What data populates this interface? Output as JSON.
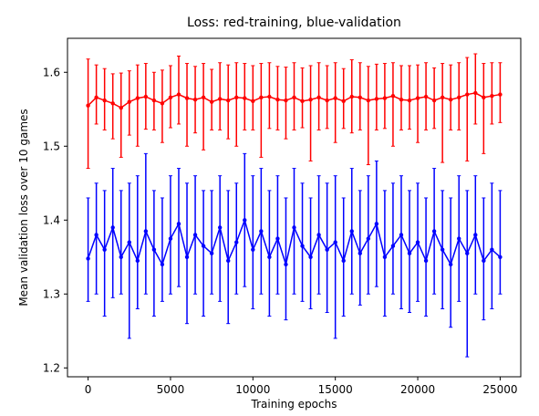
{
  "chart_data": {
    "type": "line",
    "title": "Loss: red-training, blue-validation",
    "xlabel": "Training epochs",
    "ylabel": "Mean validation loss over 10 games",
    "xlim": [
      -1250,
      26250
    ],
    "ylim": [
      1.188,
      1.646
    ],
    "xticks": [
      0,
      5000,
      10000,
      15000,
      20000,
      25000
    ],
    "xtick_labels": [
      "0",
      "5000",
      "10000",
      "15000",
      "20000",
      "25000"
    ],
    "yticks": [
      1.2,
      1.3,
      1.4,
      1.5,
      1.6
    ],
    "ytick_labels": [
      "1.2",
      "1.3",
      "1.4",
      "1.5",
      "1.6"
    ],
    "grid": false,
    "legend": "none",
    "series": [
      {
        "color": "#ff0000",
        "style": "line-with-errorbars",
        "x": [
          0,
          500,
          1000,
          1500,
          2000,
          2500,
          3000,
          3500,
          4000,
          4500,
          5000,
          5500,
          6000,
          6500,
          7000,
          7500,
          8000,
          8500,
          9000,
          9500,
          10000,
          10500,
          11000,
          11500,
          12000,
          12500,
          13000,
          13500,
          14000,
          14500,
          15000,
          15500,
          16000,
          16500,
          17000,
          17500,
          18000,
          18500,
          19000,
          19500,
          20000,
          20500,
          21000,
          21500,
          22000,
          22500,
          23000,
          23500,
          24000,
          24500,
          25000
        ],
        "y": [
          1.555,
          1.566,
          1.562,
          1.558,
          1.552,
          1.56,
          1.565,
          1.567,
          1.562,
          1.558,
          1.566,
          1.57,
          1.565,
          1.563,
          1.566,
          1.56,
          1.564,
          1.562,
          1.566,
          1.565,
          1.561,
          1.566,
          1.567,
          1.563,
          1.562,
          1.566,
          1.561,
          1.563,
          1.566,
          1.562,
          1.565,
          1.561,
          1.567,
          1.566,
          1.562,
          1.564,
          1.565,
          1.568,
          1.563,
          1.562,
          1.565,
          1.567,
          1.562,
          1.566,
          1.563,
          1.566,
          1.57,
          1.572,
          1.566,
          1.568,
          1.57
        ],
        "err_low": [
          1.47,
          1.53,
          1.522,
          1.51,
          1.485,
          1.515,
          1.5,
          1.523,
          1.522,
          1.505,
          1.525,
          1.53,
          1.5,
          1.518,
          1.495,
          1.522,
          1.522,
          1.51,
          1.5,
          1.522,
          1.522,
          1.485,
          1.524,
          1.522,
          1.51,
          1.522,
          1.525,
          1.48,
          1.522,
          1.524,
          1.505,
          1.524,
          1.518,
          1.522,
          1.475,
          1.522,
          1.524,
          1.5,
          1.522,
          1.523,
          1.505,
          1.522,
          1.524,
          1.478,
          1.522,
          1.522,
          1.48,
          1.53,
          1.49,
          1.53,
          1.532
        ],
        "err_high": [
          1.618,
          1.61,
          1.605,
          1.598,
          1.599,
          1.602,
          1.61,
          1.612,
          1.6,
          1.603,
          1.609,
          1.622,
          1.612,
          1.608,
          1.612,
          1.604,
          1.613,
          1.61,
          1.613,
          1.612,
          1.609,
          1.612,
          1.613,
          1.608,
          1.607,
          1.613,
          1.606,
          1.609,
          1.613,
          1.609,
          1.613,
          1.605,
          1.617,
          1.613,
          1.608,
          1.611,
          1.612,
          1.613,
          1.609,
          1.609,
          1.61,
          1.613,
          1.606,
          1.612,
          1.61,
          1.613,
          1.62,
          1.625,
          1.612,
          1.613,
          1.613
        ]
      },
      {
        "color": "#0000ff",
        "style": "line-with-errorbars",
        "x": [
          0,
          500,
          1000,
          1500,
          2000,
          2500,
          3000,
          3500,
          4000,
          4500,
          5000,
          5500,
          6000,
          6500,
          7000,
          7500,
          8000,
          8500,
          9000,
          9500,
          10000,
          10500,
          11000,
          11500,
          12000,
          12500,
          13000,
          13500,
          14000,
          14500,
          15000,
          15500,
          16000,
          16500,
          17000,
          17500,
          18000,
          18500,
          19000,
          19500,
          20000,
          20500,
          21000,
          21500,
          22000,
          22500,
          23000,
          23500,
          24000,
          24500,
          25000
        ],
        "y": [
          1.348,
          1.38,
          1.36,
          1.39,
          1.35,
          1.37,
          1.345,
          1.385,
          1.36,
          1.34,
          1.375,
          1.395,
          1.35,
          1.38,
          1.365,
          1.355,
          1.39,
          1.345,
          1.37,
          1.4,
          1.36,
          1.385,
          1.35,
          1.375,
          1.34,
          1.39,
          1.365,
          1.35,
          1.38,
          1.36,
          1.37,
          1.345,
          1.385,
          1.355,
          1.375,
          1.395,
          1.35,
          1.365,
          1.38,
          1.355,
          1.37,
          1.345,
          1.385,
          1.36,
          1.34,
          1.375,
          1.355,
          1.38,
          1.345,
          1.36,
          1.35
        ],
        "err_low": [
          1.29,
          1.3,
          1.27,
          1.295,
          1.3,
          1.24,
          1.28,
          1.3,
          1.27,
          1.29,
          1.3,
          1.31,
          1.26,
          1.3,
          1.27,
          1.3,
          1.29,
          1.26,
          1.3,
          1.31,
          1.28,
          1.3,
          1.27,
          1.3,
          1.265,
          1.3,
          1.29,
          1.28,
          1.3,
          1.275,
          1.24,
          1.27,
          1.3,
          1.285,
          1.3,
          1.31,
          1.27,
          1.3,
          1.28,
          1.275,
          1.29,
          1.27,
          1.3,
          1.28,
          1.255,
          1.29,
          1.215,
          1.3,
          1.265,
          1.28,
          1.3
        ],
        "err_high": [
          1.43,
          1.45,
          1.44,
          1.47,
          1.44,
          1.45,
          1.46,
          1.49,
          1.44,
          1.43,
          1.46,
          1.47,
          1.45,
          1.46,
          1.44,
          1.44,
          1.46,
          1.44,
          1.45,
          1.49,
          1.46,
          1.47,
          1.44,
          1.46,
          1.43,
          1.47,
          1.45,
          1.43,
          1.46,
          1.45,
          1.46,
          1.43,
          1.47,
          1.44,
          1.46,
          1.48,
          1.44,
          1.45,
          1.46,
          1.44,
          1.45,
          1.43,
          1.47,
          1.44,
          1.43,
          1.46,
          1.44,
          1.46,
          1.43,
          1.45,
          1.44
        ]
      }
    ]
  }
}
